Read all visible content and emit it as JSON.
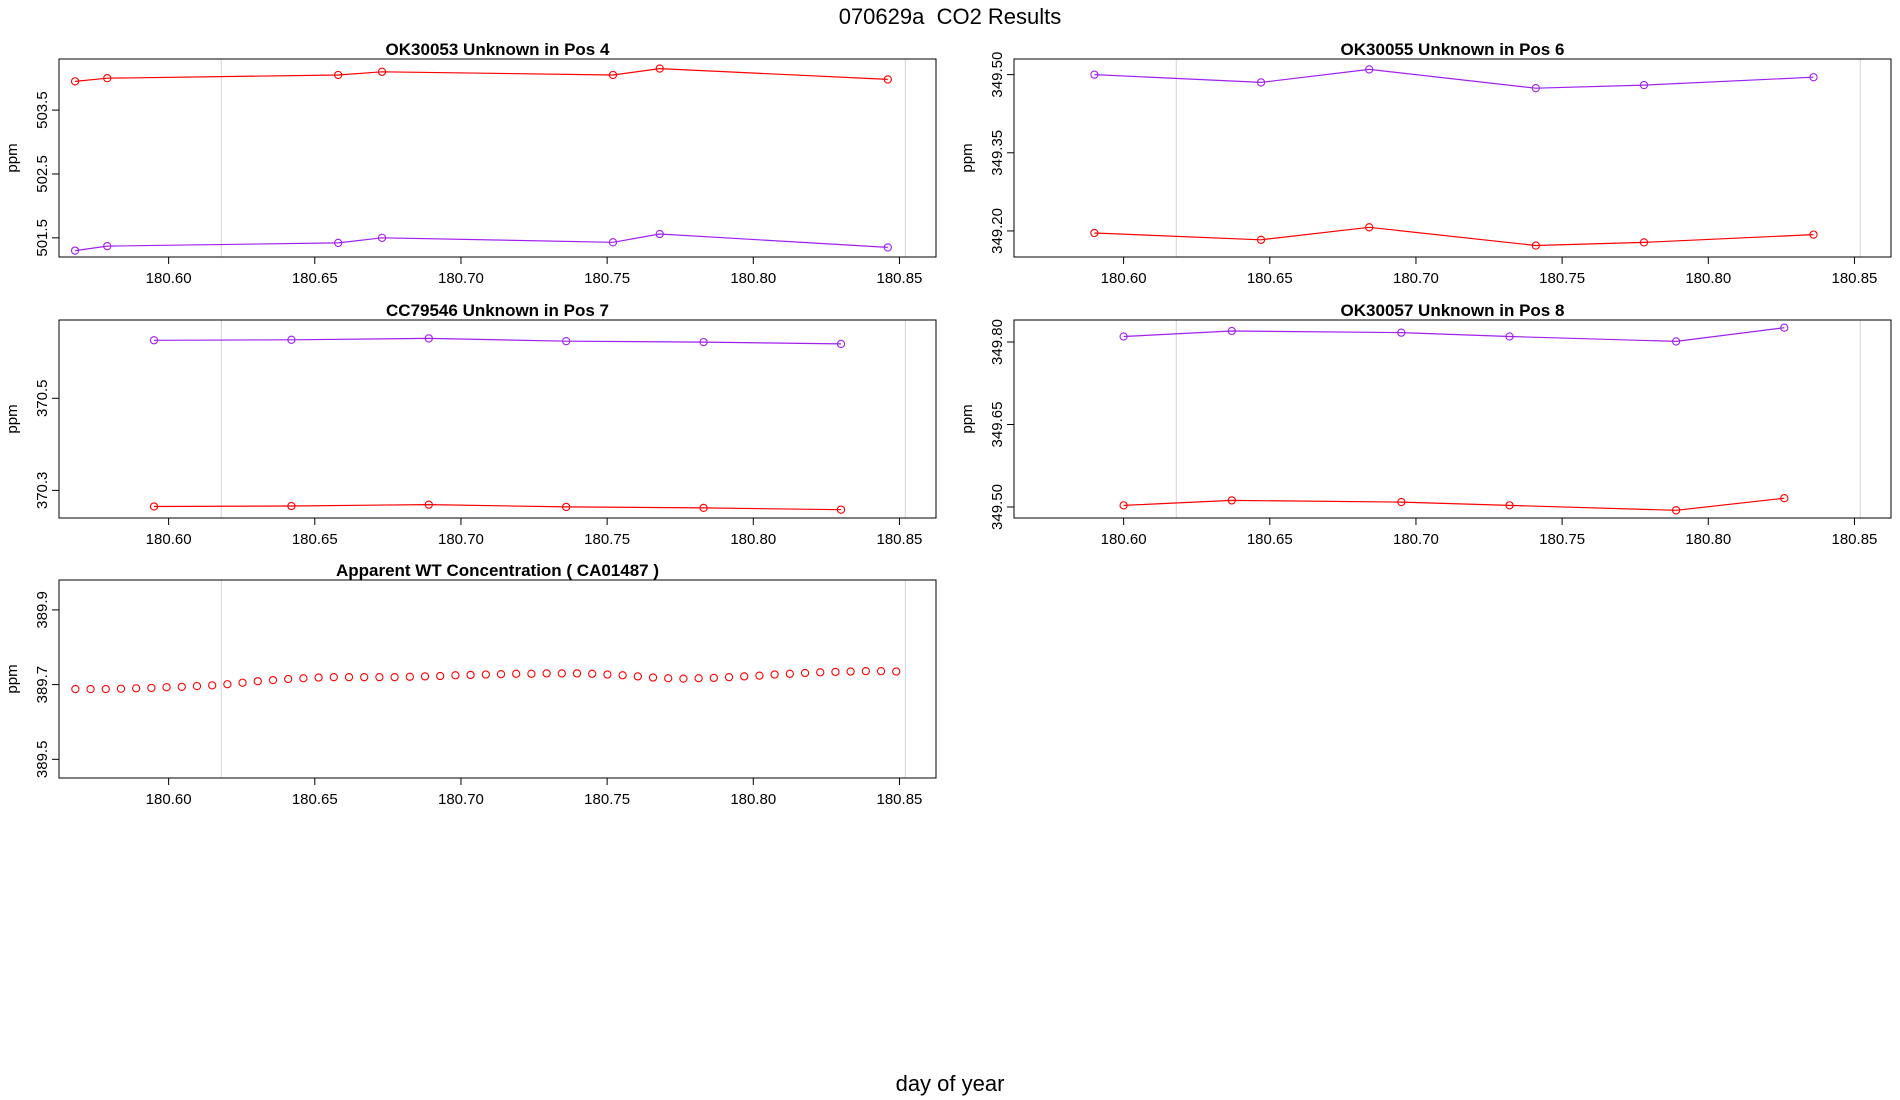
{
  "figure": {
    "title": "070629a  CO2 Results",
    "xlabel": "day of year"
  },
  "colors": {
    "series_a": "#ff0000",
    "series_b": "#a020f0",
    "reference_line": "#d3d3d3",
    "frame": "#000000"
  },
  "chart_data": [
    {
      "id": "pos4",
      "type": "line",
      "title": "OK30053    Unknown in Pos 4",
      "ylabel": "ppm",
      "xlim": [
        180.5625,
        180.8625
      ],
      "ylim": [
        501.2,
        504.3
      ],
      "xticks": [
        "180.60",
        "180.65",
        "180.70",
        "180.75",
        "180.80",
        "180.85"
      ],
      "yticks": [
        "501.5",
        "502.5",
        "503.5"
      ],
      "vlines": [
        180.618,
        180.852
      ],
      "series": [
        {
          "name": "red",
          "color": "#ff0000",
          "x": [
            180.568,
            180.579,
            180.658,
            180.673,
            180.752,
            180.768,
            180.846
          ],
          "y": [
            503.95,
            504.0,
            504.05,
            504.1,
            504.05,
            504.15,
            503.98
          ]
        },
        {
          "name": "purple",
          "color": "#a020f0",
          "x": [
            180.568,
            180.579,
            180.658,
            180.673,
            180.752,
            180.768,
            180.846
          ],
          "y": [
            501.3,
            501.37,
            501.42,
            501.5,
            501.43,
            501.56,
            501.35
          ]
        }
      ]
    },
    {
      "id": "pos6",
      "type": "line",
      "title": "OK30055    Unknown in Pos 6",
      "ylabel": "ppm",
      "xlim": [
        180.5625,
        180.8625
      ],
      "ylim": [
        349.15,
        349.53
      ],
      "xticks": [
        "180.60",
        "180.65",
        "180.70",
        "180.75",
        "180.80",
        "180.85"
      ],
      "yticks": [
        "349.20",
        "349.35",
        "349.50"
      ],
      "vlines": [
        180.618,
        180.852
      ],
      "series": [
        {
          "name": "red",
          "color": "#ff0000",
          "x": [
            180.59,
            180.647,
            180.684,
            180.741,
            180.778,
            180.836
          ],
          "y": [
            349.196,
            349.183,
            349.207,
            349.172,
            349.178,
            349.193
          ]
        },
        {
          "name": "purple",
          "color": "#a020f0",
          "x": [
            180.59,
            180.647,
            180.684,
            180.741,
            180.778,
            180.836
          ],
          "y": [
            349.5,
            349.485,
            349.51,
            349.474,
            349.48,
            349.495
          ]
        }
      ]
    },
    {
      "id": "pos7",
      "type": "line",
      "title": "CC79546    Unknown in Pos 7",
      "ylabel": "ppm",
      "xlim": [
        180.5625,
        180.8625
      ],
      "ylim": [
        370.24,
        370.67
      ],
      "xticks": [
        "180.60",
        "180.65",
        "180.70",
        "180.75",
        "180.80",
        "180.85"
      ],
      "yticks": [
        "370.3",
        "370.5"
      ],
      "vlines": [
        180.618,
        180.852
      ],
      "series": [
        {
          "name": "red",
          "color": "#ff0000",
          "x": [
            180.595,
            180.642,
            180.689,
            180.736,
            180.783,
            180.83
          ],
          "y": [
            370.265,
            370.266,
            370.269,
            370.264,
            370.262,
            370.258
          ]
        },
        {
          "name": "purple",
          "color": "#a020f0",
          "x": [
            180.595,
            180.642,
            180.689,
            180.736,
            180.783,
            180.83
          ],
          "y": [
            370.626,
            370.627,
            370.63,
            370.624,
            370.622,
            370.618
          ]
        }
      ]
    },
    {
      "id": "pos8",
      "type": "line",
      "title": "OK30057    Unknown in Pos 8",
      "ylabel": "ppm",
      "xlim": [
        180.5625,
        180.8625
      ],
      "ylim": [
        349.48,
        349.84
      ],
      "xticks": [
        "180.60",
        "180.65",
        "180.70",
        "180.75",
        "180.80",
        "180.85"
      ],
      "yticks": [
        "349.50",
        "349.65",
        "349.80"
      ],
      "vlines": [
        180.618,
        180.852
      ],
      "series": [
        {
          "name": "red",
          "color": "#ff0000",
          "x": [
            180.6,
            180.637,
            180.695,
            180.732,
            180.789,
            180.826
          ],
          "y": [
            349.503,
            349.512,
            349.509,
            349.503,
            349.494,
            349.516
          ]
        },
        {
          "name": "purple",
          "color": "#a020f0",
          "x": [
            180.6,
            180.637,
            180.695,
            180.732,
            180.789,
            180.826
          ],
          "y": [
            349.81,
            349.82,
            349.817,
            349.81,
            349.801,
            349.826
          ]
        }
      ]
    },
    {
      "id": "wt",
      "type": "scatter",
      "title": "Apparent WT Concentration ( CA01487 )",
      "ylabel": "ppm",
      "xlim": [
        180.5625,
        180.8625
      ],
      "ylim": [
        389.45,
        389.98
      ],
      "xticks": [
        "180.60",
        "180.65",
        "180.70",
        "180.75",
        "180.80",
        "180.85"
      ],
      "yticks": [
        "389.5",
        "389.7",
        "389.9"
      ],
      "vlines": [
        180.618,
        180.852
      ],
      "series": [
        {
          "name": "red",
          "color": "#ff0000",
          "x": [
            180.5681,
            180.5733,
            180.5785,
            180.5837,
            180.5889,
            180.5941,
            180.5993,
            180.6045,
            180.6097,
            180.6149,
            180.6201,
            180.6253,
            180.6305,
            180.6357,
            180.6409,
            180.6461,
            180.6513,
            180.6565,
            180.6617,
            180.6669,
            180.6721,
            180.6773,
            180.6825,
            180.6877,
            180.6929,
            180.6981,
            180.7033,
            180.7085,
            180.7137,
            180.7189,
            180.7241,
            180.7293,
            180.7345,
            180.7397,
            180.7449,
            180.7501,
            180.7553,
            180.7605,
            180.7657,
            180.7709,
            180.7761,
            180.7813,
            180.7865,
            180.7917,
            180.7969,
            180.8021,
            180.8073,
            180.8125,
            180.8177,
            180.8229,
            180.8281,
            180.8333,
            180.8385,
            180.8437,
            180.8489
          ],
          "y": [
            389.688,
            389.688,
            389.688,
            389.689,
            389.69,
            389.691,
            389.693,
            389.694,
            389.696,
            389.698,
            389.701,
            389.705,
            389.709,
            389.712,
            389.715,
            389.717,
            389.719,
            389.72,
            389.72,
            389.72,
            389.72,
            389.72,
            389.721,
            389.722,
            389.723,
            389.725,
            389.726,
            389.727,
            389.728,
            389.729,
            389.729,
            389.73,
            389.73,
            389.73,
            389.729,
            389.727,
            389.725,
            389.722,
            389.719,
            389.717,
            389.716,
            389.717,
            389.718,
            389.72,
            389.722,
            389.724,
            389.727,
            389.729,
            389.731,
            389.733,
            389.734,
            389.735,
            389.736,
            389.736,
            389.735
          ]
        }
      ]
    }
  ]
}
